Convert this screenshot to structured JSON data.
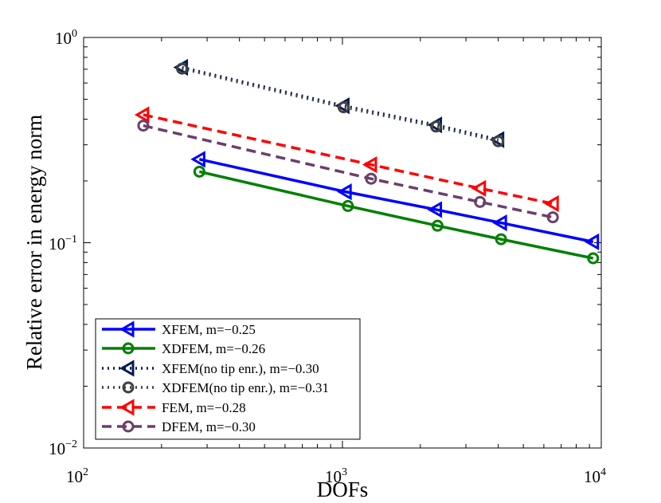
{
  "chart_data": {
    "type": "line",
    "scale": {
      "x": "log",
      "y": "log"
    },
    "xlim": [
      100,
      10000
    ],
    "ylim": [
      0.01,
      1
    ],
    "xlabel": "DOFs",
    "ylabel": "Relative error in energy norm",
    "grid": false,
    "legend_position": "bottom-left",
    "x_ticks": [
      {
        "base": "10",
        "exp": "2",
        "value": 100
      },
      {
        "base": "10",
        "exp": "3",
        "value": 1000
      },
      {
        "base": "10",
        "exp": "4",
        "value": 10000
      }
    ],
    "y_ticks": [
      {
        "base": "10",
        "exp": "−2",
        "value": 0.01
      },
      {
        "base": "10",
        "exp": "−1",
        "value": 0.1
      },
      {
        "base": "10",
        "exp": "0",
        "value": 1
      }
    ],
    "series": [
      {
        "name": "XFEM, m=−0.25",
        "color": "#0000ff",
        "dash": "solid",
        "marker": "triangle-left",
        "x": [
          280,
          1030,
          2300,
          4100,
          9300
        ],
        "y": [
          0.255,
          0.177,
          0.145,
          0.125,
          0.101
        ]
      },
      {
        "name": "XDFEM, m=−0.26",
        "color": "#008000",
        "dash": "solid",
        "marker": "circle",
        "x": [
          280,
          1050,
          2330,
          4100,
          9300
        ],
        "y": [
          0.222,
          0.151,
          0.121,
          0.104,
          0.084
        ]
      },
      {
        "name": "XFEM(no tip enr.), m=−0.30",
        "color": "#001a57",
        "dash": "dotted",
        "marker": "triangle-left",
        "x": [
          240,
          1010,
          2300,
          4000
        ],
        "y": [
          0.715,
          0.465,
          0.375,
          0.318
        ]
      },
      {
        "name": "XDFEM(no tip enr.), m=−0.31",
        "color": "#404040",
        "dash": "dotted",
        "marker": "circle",
        "x": [
          240,
          1010,
          2300,
          4000
        ],
        "y": [
          0.705,
          0.457,
          0.368,
          0.312
        ]
      },
      {
        "name": "FEM, m=−0.28",
        "color": "#ff0000",
        "dash": "dashed",
        "marker": "triangle-left",
        "x": [
          170,
          1290,
          3400,
          6500
        ],
        "y": [
          0.42,
          0.24,
          0.184,
          0.155
        ]
      },
      {
        "name": "DFEM, m=−0.30",
        "color": "#6b3f6b",
        "dash": "dashed",
        "marker": "circle",
        "x": [
          170,
          1290,
          3400,
          6500
        ],
        "y": [
          0.372,
          0.205,
          0.158,
          0.133
        ]
      }
    ]
  }
}
